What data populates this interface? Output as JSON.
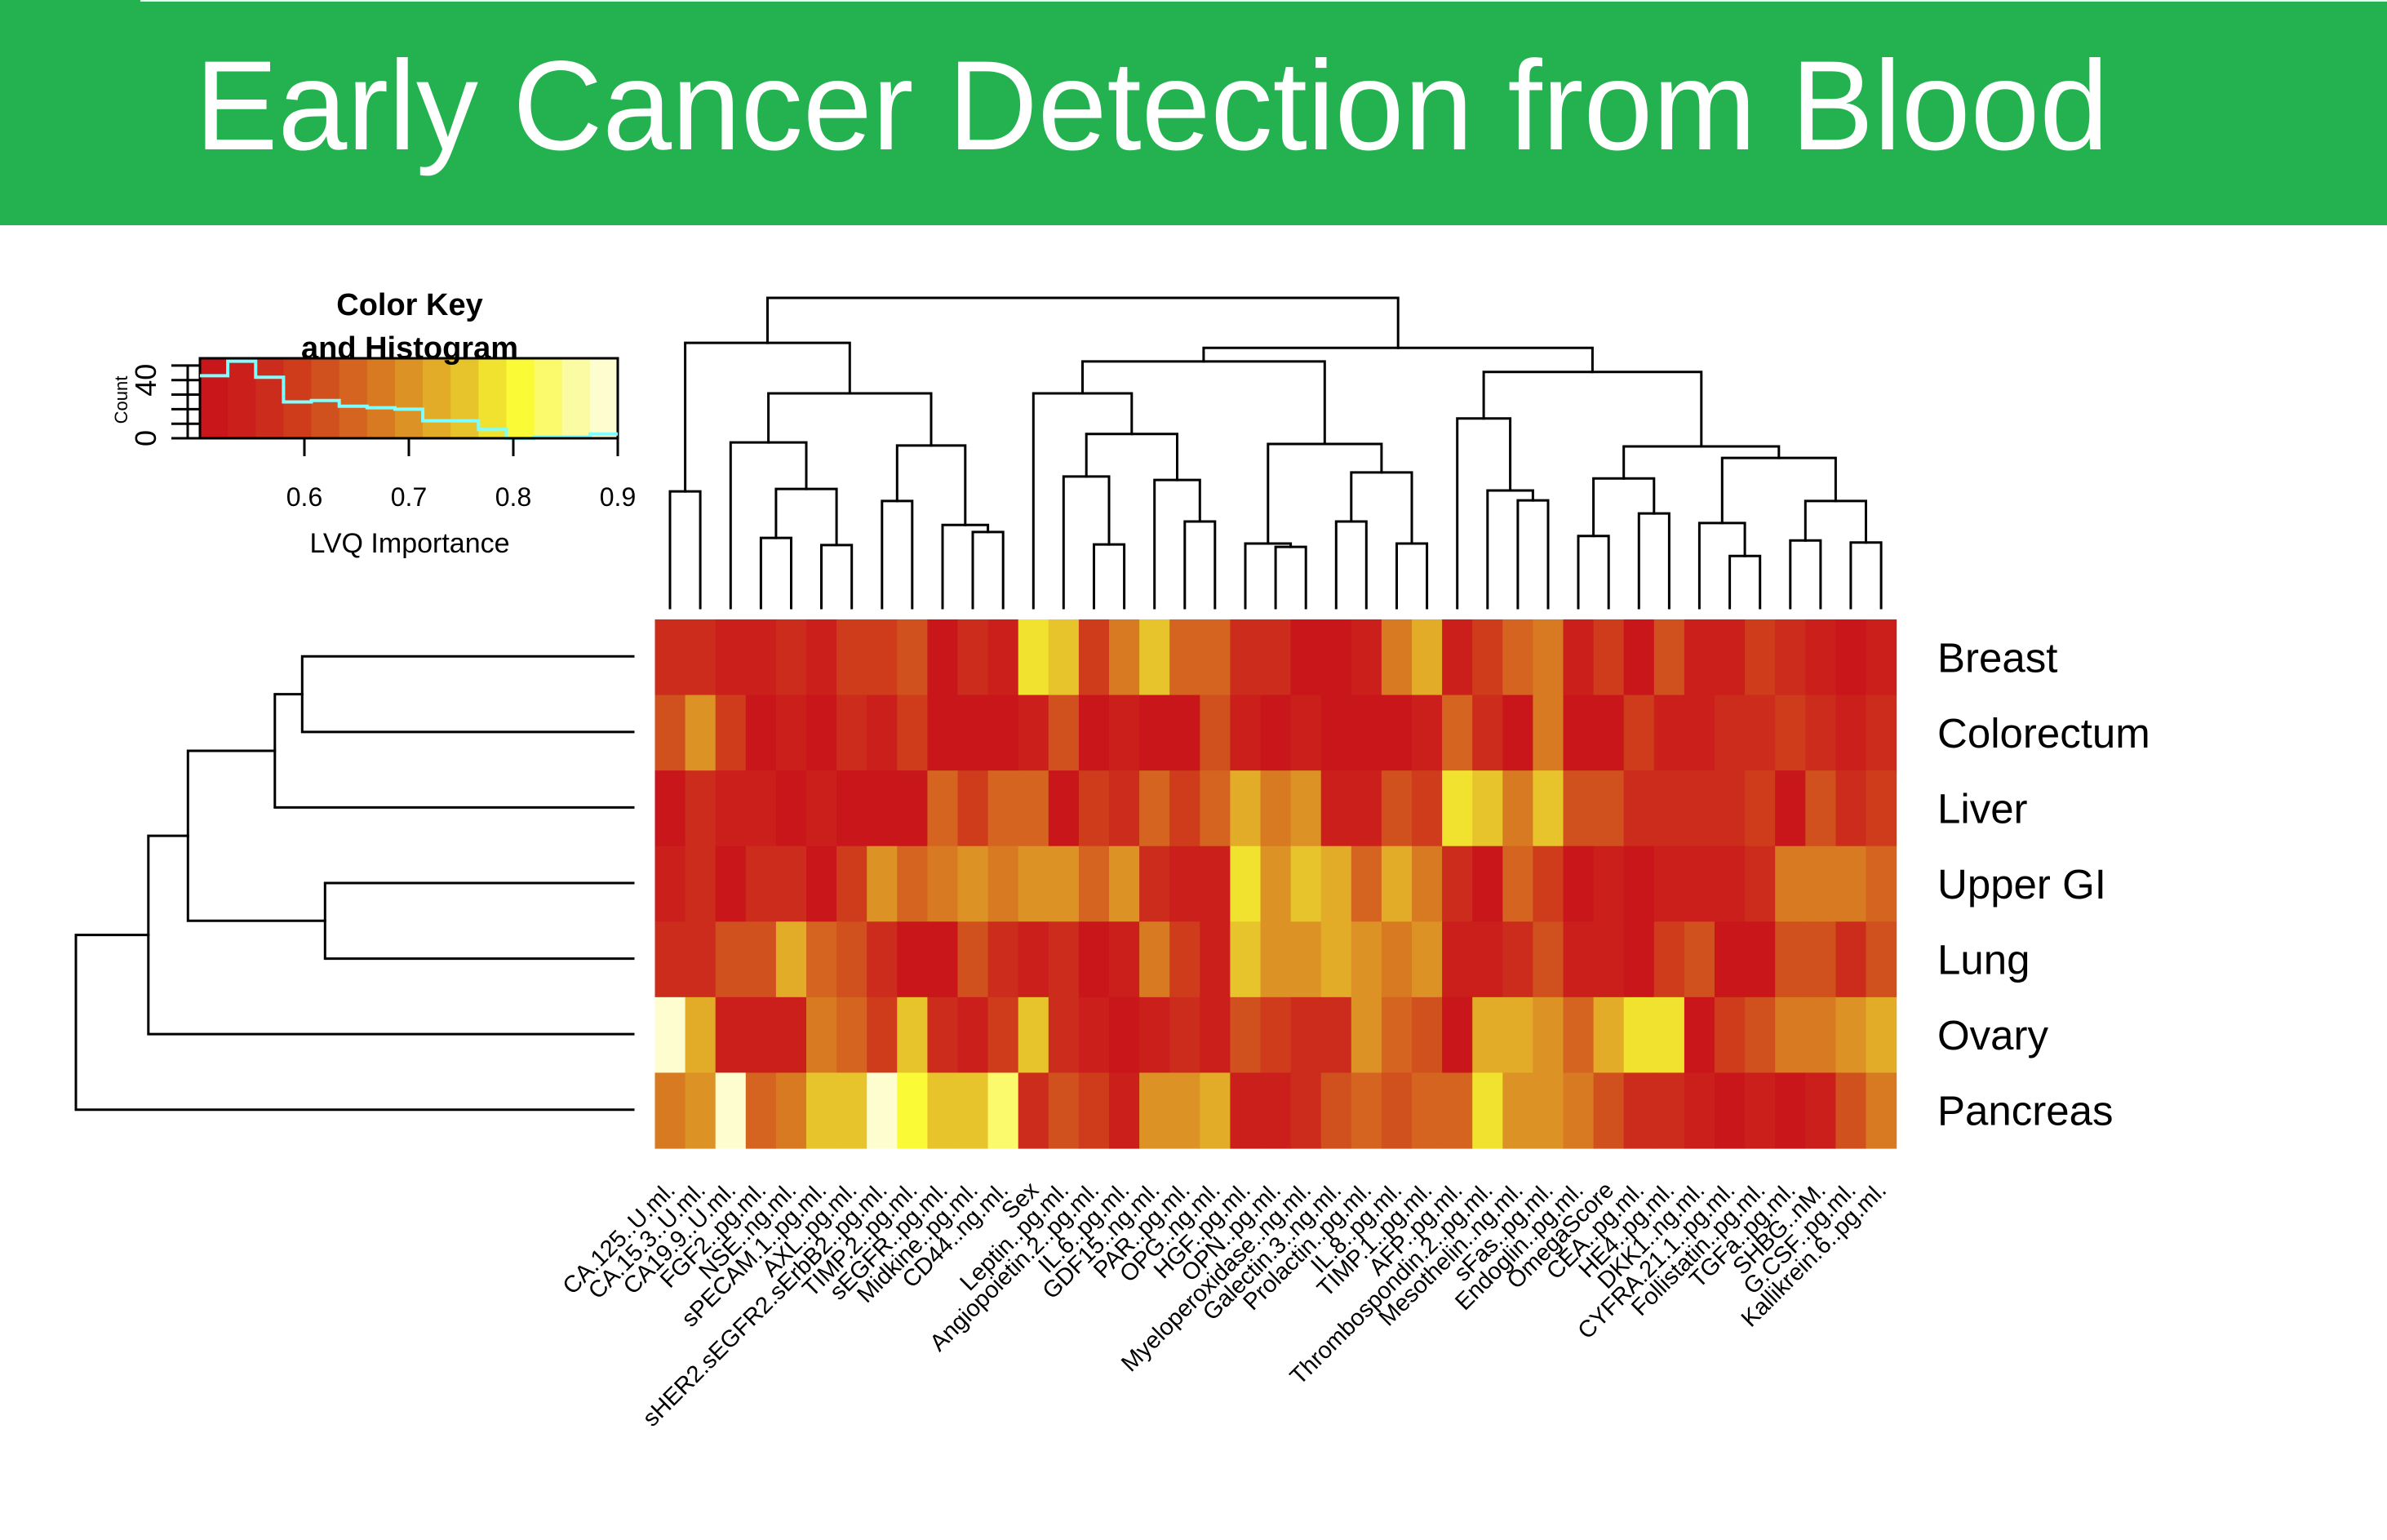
{
  "banner": {
    "title": "Early Cancer Detection from Blood",
    "background_color": "#24B14F",
    "text_color": "#FFFFFF"
  },
  "chart_data": {
    "type": "heatmap",
    "title": "Early Cancer Detection from Blood",
    "value_label": "LVQ Importance",
    "rows": [
      "Breast",
      "Colorectum",
      "Liver",
      "Upper GI",
      "Lung",
      "Ovary",
      "Pancreas"
    ],
    "columns": [
      "CA.125..U.ml.",
      "CA.15.3..U.ml.",
      "CA19.9..U.ml.",
      "FGF2..pg.ml.",
      "NSE..ng.ml.",
      "sPECAM.1..pg.ml.",
      "AXL..pg.ml.",
      "sHER2.sEGFR2.sErbB2..pg.ml.",
      "TIMP.2..pg.ml.",
      "sEGFR..pg.ml.",
      "Midkine..pg.ml.",
      "CD44..ng.ml.",
      "Sex",
      "Leptin..pg.ml.",
      "Angiopoietin.2..pg.ml.",
      "IL.6..pg.ml.",
      "GDF15..ng.ml.",
      "PAR..pg.ml.",
      "OPG..ng.ml.",
      "HGF..pg.ml.",
      "OPN..pg.ml.",
      "Myeloperoxidase..ng.ml.",
      "Galectin.3..ng.ml.",
      "Prolactin..pg.ml.",
      "IL.8..pg.ml.",
      "TIMP.1..pg.ml.",
      "AFP..pg.ml.",
      "Thrombospondin.2..pg.ml.",
      "Mesothelin..ng.ml.",
      "sFas..pg.ml.",
      "Endoglin..pg.ml.",
      "OmegaScore",
      "CEA..pg.ml.",
      "HE4..pg.ml.",
      "DKK1..ng.ml.",
      "CYFRA.21.1..pg.ml.",
      "Follistatin..pg.ml.",
      "TGFa..pg.ml.",
      "SHBG..nM.",
      "G.CSF..pg.ml.",
      "Kallikrein.6..pg.ml."
    ],
    "values": [
      [
        0.57,
        0.57,
        0.54,
        0.54,
        0.57,
        0.54,
        0.59,
        0.59,
        0.62,
        0.51,
        0.57,
        0.54,
        0.78,
        0.75,
        0.59,
        0.67,
        0.75,
        0.65,
        0.65,
        0.57,
        0.57,
        0.51,
        0.51,
        0.54,
        0.67,
        0.73,
        0.54,
        0.59,
        0.65,
        0.67,
        0.54,
        0.59,
        0.51,
        0.62,
        0.54,
        0.54,
        0.59,
        0.57,
        0.54,
        0.51,
        0.54
      ],
      [
        0.62,
        0.7,
        0.59,
        0.51,
        0.54,
        0.51,
        0.57,
        0.54,
        0.59,
        0.51,
        0.51,
        0.51,
        0.54,
        0.62,
        0.51,
        0.54,
        0.51,
        0.51,
        0.62,
        0.54,
        0.51,
        0.54,
        0.51,
        0.51,
        0.51,
        0.54,
        0.65,
        0.57,
        0.51,
        0.67,
        0.51,
        0.51,
        0.59,
        0.54,
        0.54,
        0.57,
        0.57,
        0.59,
        0.57,
        0.54,
        0.57
      ],
      [
        0.51,
        0.57,
        0.54,
        0.54,
        0.51,
        0.54,
        0.51,
        0.51,
        0.51,
        0.65,
        0.59,
        0.65,
        0.65,
        0.51,
        0.59,
        0.57,
        0.65,
        0.59,
        0.65,
        0.73,
        0.67,
        0.7,
        0.54,
        0.54,
        0.62,
        0.59,
        0.78,
        0.75,
        0.67,
        0.75,
        0.62,
        0.62,
        0.57,
        0.57,
        0.57,
        0.57,
        0.59,
        0.51,
        0.62,
        0.57,
        0.59
      ],
      [
        0.54,
        0.57,
        0.51,
        0.57,
        0.57,
        0.51,
        0.59,
        0.7,
        0.65,
        0.67,
        0.7,
        0.67,
        0.7,
        0.7,
        0.65,
        0.7,
        0.57,
        0.54,
        0.54,
        0.78,
        0.7,
        0.75,
        0.73,
        0.65,
        0.73,
        0.67,
        0.57,
        0.51,
        0.65,
        0.59,
        0.51,
        0.54,
        0.51,
        0.54,
        0.54,
        0.54,
        0.57,
        0.67,
        0.67,
        0.67,
        0.65
      ],
      [
        0.57,
        0.57,
        0.62,
        0.62,
        0.73,
        0.65,
        0.62,
        0.57,
        0.51,
        0.51,
        0.62,
        0.57,
        0.54,
        0.57,
        0.51,
        0.54,
        0.67,
        0.59,
        0.54,
        0.75,
        0.7,
        0.7,
        0.73,
        0.7,
        0.67,
        0.7,
        0.54,
        0.54,
        0.57,
        0.62,
        0.54,
        0.54,
        0.51,
        0.59,
        0.62,
        0.51,
        0.51,
        0.62,
        0.62,
        0.57,
        0.62
      ],
      [
        0.89,
        0.73,
        0.54,
        0.54,
        0.54,
        0.67,
        0.65,
        0.59,
        0.75,
        0.57,
        0.54,
        0.59,
        0.75,
        0.57,
        0.54,
        0.51,
        0.54,
        0.57,
        0.54,
        0.62,
        0.59,
        0.57,
        0.57,
        0.7,
        0.65,
        0.62,
        0.51,
        0.73,
        0.73,
        0.7,
        0.65,
        0.73,
        0.78,
        0.78,
        0.51,
        0.59,
        0.62,
        0.67,
        0.67,
        0.7,
        0.73
      ],
      [
        0.67,
        0.7,
        0.89,
        0.65,
        0.67,
        0.75,
        0.75,
        0.89,
        0.81,
        0.75,
        0.75,
        0.83,
        0.57,
        0.62,
        0.59,
        0.54,
        0.7,
        0.7,
        0.73,
        0.54,
        0.54,
        0.57,
        0.62,
        0.65,
        0.62,
        0.65,
        0.65,
        0.78,
        0.7,
        0.7,
        0.67,
        0.62,
        0.57,
        0.57,
        0.54,
        0.51,
        0.54,
        0.51,
        0.54,
        0.62,
        0.67
      ]
    ],
    "color_scale": {
      "min": 0.5,
      "max": 0.9,
      "bins": 15,
      "colors": [
        "#C8161A",
        "#CB1F1B",
        "#CC2C1B",
        "#CE3C1C",
        "#D0501E",
        "#D4641F",
        "#D87A21",
        "#DC9224",
        "#E2AC28",
        "#E8C42C",
        "#F0E22E",
        "#FAFA36",
        "#FAFA6C",
        "#FBFBA4",
        "#FDFDD0"
      ]
    },
    "column_dendrogram": {
      "h": 1.0,
      "children": [
        {
          "h": 0.855,
          "children": [
            {
              "h": 0.376,
              "children": [
                0,
                1
              ]
            },
            {
              "h": 0.692,
              "children": [
                {
                  "h": 0.534,
                  "children": [
                    2,
                    {
                      "h": 0.384,
                      "children": [
                        {
                          "h": 0.226,
                          "children": [
                            3,
                            4
                          ]
                        },
                        {
                          "h": 0.203,
                          "children": [
                            5,
                            6
                          ]
                        }
                      ]
                    }
                  ]
                },
                {
                  "h": 0.524,
                  "children": [
                    {
                      "h": 0.345,
                      "children": [
                        7,
                        8
                      ]
                    },
                    {
                      "h": 0.268,
                      "children": [
                        9,
                        {
                          "h": 0.245,
                          "children": [
                            10,
                            11
                          ]
                        }
                      ]
                    }
                  ]
                }
              ]
            }
          ]
        },
        {
          "h": 0.839,
          "children": [
            {
              "h": 0.795,
              "children": [
                {
                  "h": 0.692,
                  "children": [
                    12,
                    {
                      "h": 0.561,
                      "children": [
                        {
                          "h": 0.424,
                          "children": [
                            13,
                            {
                              "h": 0.205,
                              "children": [
                                14,
                                15
                              ]
                            }
                          ]
                        },
                        {
                          "h": 0.413,
                          "children": [
                            16,
                            {
                              "h": 0.279,
                              "children": [
                                17,
                                18
                              ]
                            }
                          ]
                        }
                      ]
                    }
                  ]
                },
                {
                  "h": 0.529,
                  "children": [
                    {
                      "h": 0.208,
                      "children": [
                        19,
                        {
                          "h": 0.197,
                          "children": [
                            20,
                            21
                          ]
                        }
                      ]
                    },
                    {
                      "h": 0.437,
                      "children": [
                        {
                          "h": 0.279,
                          "children": [
                            22,
                            23
                          ]
                        },
                        {
                          "h": 0.208,
                          "children": [
                            24,
                            25
                          ]
                        }
                      ]
                    }
                  ]
                }
              ]
            },
            {
              "h": 0.761,
              "children": [
                {
                  "h": 0.611,
                  "children": [
                    26,
                    {
                      "h": 0.379,
                      "children": [
                        27,
                        {
                          "h": 0.347,
                          "children": [
                            28,
                            29
                          ]
                        }
                      ]
                    }
                  ]
                },
                {
                  "h": 0.521,
                  "children": [
                    {
                      "h": 0.418,
                      "children": [
                        {
                          "h": 0.232,
                          "children": [
                            30,
                            31
                          ]
                        },
                        {
                          "h": 0.305,
                          "children": [
                            32,
                            33
                          ]
                        }
                      ]
                    },
                    {
                      "h": 0.484,
                      "children": [
                        {
                          "h": 0.274,
                          "children": [
                            34,
                            {
                              "h": 0.168,
                              "children": [
                                35,
                                36
                              ]
                            }
                          ]
                        },
                        {
                          "h": 0.345,
                          "children": [
                            {
                              "h": 0.218,
                              "children": [
                                37,
                                38
                              ]
                            },
                            {
                              "h": 0.211,
                              "children": [
                                39,
                                40
                              ]
                            }
                          ]
                        }
                      ]
                    }
                  ]
                }
              ]
            }
          ]
        }
      ]
    },
    "row_dendrogram": {
      "h": 1.0,
      "children": [
        {
          "h": 0.87,
          "children": [
            {
              "h": 0.799,
              "children": [
                {
                  "h": 0.643,
                  "children": [
                    {
                      "h": 0.594,
                      "children": [
                        0,
                        1
                      ]
                    },
                    2
                  ]
                },
                {
                  "h": 0.553,
                  "children": [
                    3,
                    4
                  ]
                }
              ]
            },
            5
          ]
        },
        6
      ]
    },
    "color_key": {
      "title_line1": "Color Key",
      "title_line2": "and Histogram",
      "xlabel": "LVQ Importance",
      "ylabel": "Count",
      "x_ticks": [
        0.6,
        0.7,
        0.8,
        0.9
      ],
      "x_tick_labels": [
        "0.6",
        "0.7",
        "0.8",
        "0.9"
      ],
      "y_ticks": [
        0,
        10,
        20,
        30,
        40,
        50
      ],
      "y_tick_labels": [
        {
          "value": 0,
          "label": "0"
        },
        {
          "value": 40,
          "label": "40"
        }
      ],
      "xlim": [
        0.5,
        0.9
      ],
      "ylim": [
        0,
        55
      ],
      "histogram_counts": [
        43,
        53,
        42,
        25,
        26,
        22,
        21,
        20,
        12,
        12,
        6,
        0,
        1,
        1,
        3
      ],
      "histogram_line_color": "#7FFFFF"
    }
  }
}
